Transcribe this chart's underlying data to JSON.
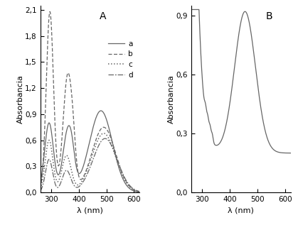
{
  "panel_A_label": "A",
  "panel_B_label": "B",
  "xlabel": "λ (nm)",
  "ylabel": "Absorbancia",
  "xlim_A": [
    260,
    620
  ],
  "ylim_A": [
    0.0,
    2.15
  ],
  "yticks_A": [
    0.0,
    0.3,
    0.6,
    0.9,
    1.2,
    1.5,
    1.8,
    2.1
  ],
  "xticks_A": [
    300,
    400,
    500,
    600
  ],
  "xlim_B": [
    260,
    620
  ],
  "ylim_B": [
    0.0,
    0.95
  ],
  "yticks_B": [
    0.0,
    0.3,
    0.6,
    0.9
  ],
  "xticks_B": [
    300,
    400,
    500,
    600
  ],
  "legend_labels": [
    "a",
    "b",
    "c",
    "d"
  ],
  "gray": "#666666"
}
